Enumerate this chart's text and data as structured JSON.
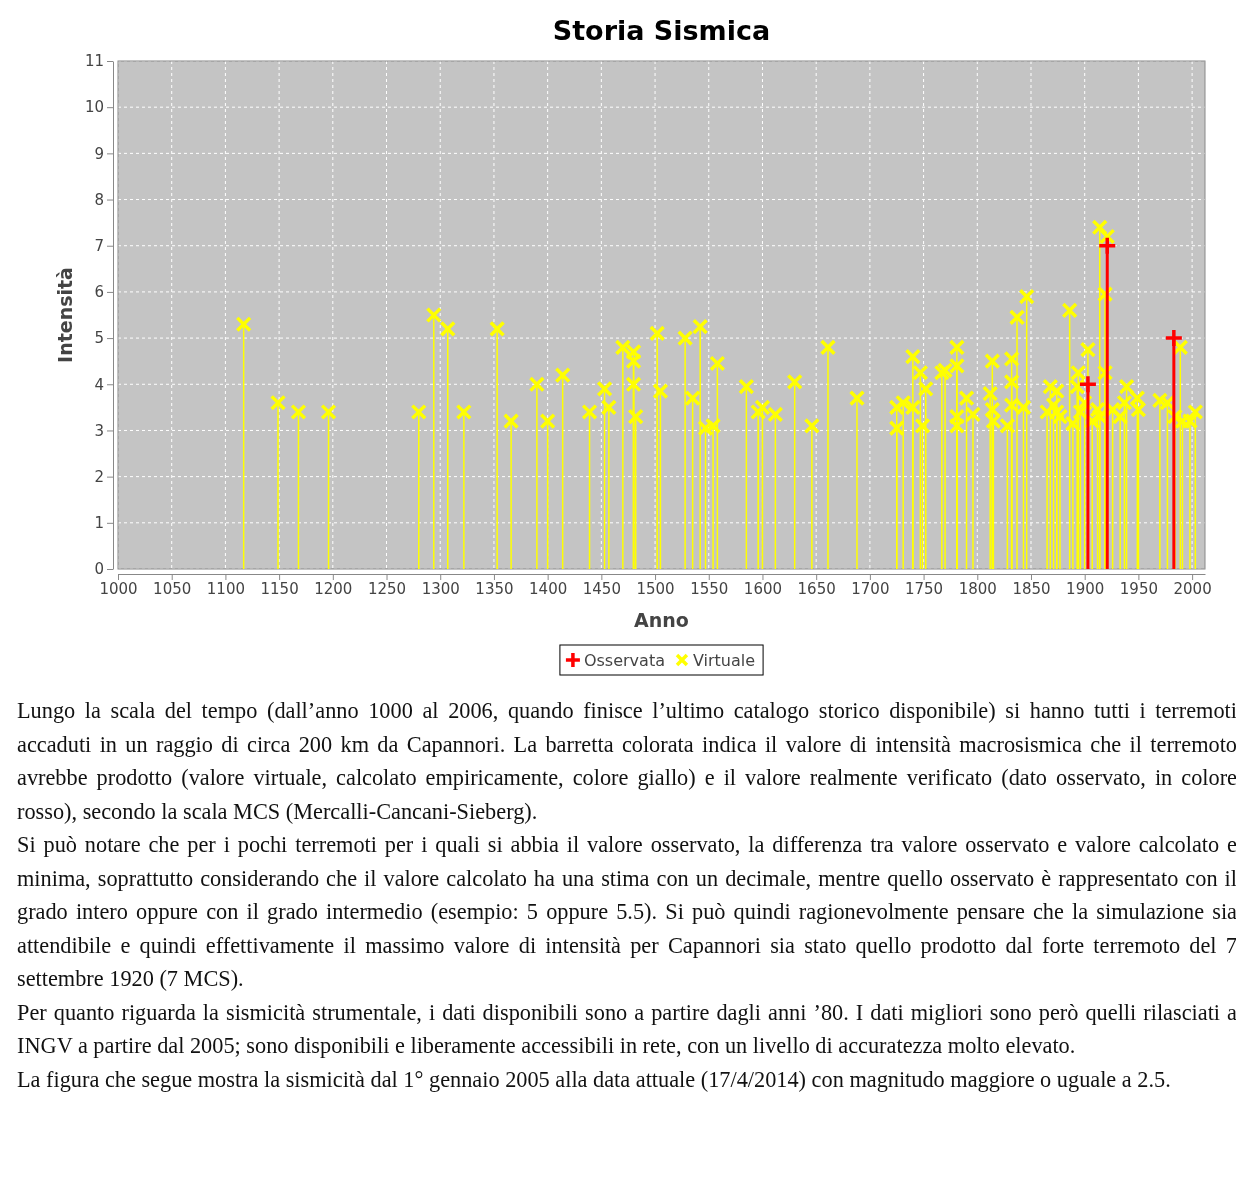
{
  "chart_data": {
    "type": "lollipop",
    "title": "Storia Sismica",
    "xlabel": "Anno",
    "ylabel": "Intensità",
    "xlim": [
      1000,
      2012
    ],
    "xticks": [
      1000,
      1050,
      1100,
      1150,
      1200,
      1250,
      1300,
      1350,
      1400,
      1450,
      1500,
      1550,
      1600,
      1650,
      1700,
      1750,
      1800,
      1850,
      1900,
      1950,
      2000
    ],
    "ylim": [
      0,
      11
    ],
    "yticks": [
      0,
      1,
      2,
      3,
      4,
      5,
      6,
      7,
      8,
      9,
      10,
      11
    ],
    "grid": true,
    "legend": "bottom",
    "marker": "cross",
    "series": [
      {
        "name": "Osservata",
        "color": "#ff0000",
        "x": [
          1903,
          1921,
          1983
        ],
        "values": [
          4.0,
          7.0,
          5.0
        ]
      },
      {
        "name": "Virtuale",
        "color": "#ffff00",
        "x": [
          1117,
          1149,
          1168,
          1196,
          1280,
          1294,
          1307,
          1322,
          1353,
          1366,
          1390,
          1400,
          1414,
          1439,
          1453,
          1457,
          1470,
          1480,
          1480,
          1480,
          1482,
          1502,
          1505,
          1528,
          1535,
          1542,
          1547,
          1554,
          1558,
          1585,
          1596,
          1600,
          1612,
          1630,
          1646,
          1661,
          1688,
          1725,
          1725,
          1731,
          1740,
          1740,
          1747,
          1749,
          1752,
          1767,
          1770,
          1781,
          1781,
          1781,
          1781,
          1790,
          1796,
          1812,
          1814,
          1814,
          1815,
          1828,
          1832,
          1832,
          1832,
          1837,
          1843,
          1846,
          1865,
          1868,
          1871,
          1874,
          1874,
          1877,
          1886,
          1889,
          1893,
          1894,
          1896,
          1900,
          1903,
          1907,
          1912,
          1914,
          1914,
          1919,
          1919,
          1921,
          1926,
          1933,
          1937,
          1939,
          1949,
          1950,
          1970,
          1977,
          1984,
          1989,
          1991,
          1998,
          2003
        ],
        "values": [
          5.3,
          3.6,
          3.4,
          3.4,
          3.4,
          5.5,
          5.2,
          3.4,
          5.2,
          3.2,
          4.0,
          3.2,
          4.2,
          3.4,
          3.9,
          3.5,
          4.8,
          4.7,
          4.5,
          4.0,
          3.3,
          5.1,
          3.85,
          5.0,
          3.7,
          5.25,
          3.05,
          3.1,
          4.45,
          3.95,
          3.4,
          3.5,
          3.35,
          4.05,
          3.1,
          4.8,
          3.7,
          3.05,
          3.5,
          3.6,
          3.5,
          4.6,
          4.25,
          3.1,
          3.9,
          4.25,
          4.3,
          4.8,
          4.4,
          3.1,
          3.3,
          3.7,
          3.35,
          3.8,
          4.5,
          3.45,
          3.2,
          3.1,
          4.55,
          4.05,
          3.55,
          5.45,
          3.5,
          5.9,
          3.4,
          3.95,
          3.55,
          3.85,
          3.4,
          3.3,
          5.6,
          3.15,
          3.95,
          4.25,
          3.4,
          3.6,
          4.75,
          3.2,
          3.45,
          7.4,
          3.3,
          5.95,
          4.25,
          7.2,
          3.45,
          3.3,
          3.6,
          3.95,
          3.7,
          3.45,
          3.65,
          3.6,
          3.3,
          4.8,
          3.2,
          3.2,
          3.4
        ]
      }
    ],
    "annotations": [
      "Lungo la scala del tempo (dall’anno 1000 al 2006, quando finisce l’ultimo catalogo storico disponibile) si hanno tutti i terremoti accaduti in un raggio di circa 200 km da Capannori. La barretta colorata indica il valore di intensità macrosismica che il terremoto avrebbe prodotto (valore virtuale, calcolato empiricamente, colore giallo) e il valore realmente verificato (dato osservato, in colore rosso), secondo la scala MCS (Mercalli-Cancani-Sieberg).",
      "Si può notare che per i pochi terremoti per i quali si abbia il valore osservato, la differenza tra valore osservato e valore calcolato e minima, soprattutto considerando che il valore calcolato ha una stima con un decimale, mentre quello osservato è rappresentato con il grado intero oppure con il grado intermedio (esempio: 5 oppure 5.5). Si può quindi ragionevolmente pensare che la simulazione sia attendibile e quindi effettivamente il massimo valore di intensità per Capannori sia stato quello prodotto dal forte terremoto del 7 settembre 1920 (7 MCS).",
      "Per quanto riguarda la sismicità strumentale, i dati disponibili sono a partire dagli anni ’80. I dati migliori sono però quelli rilasciati a INGV a partire dal 2005; sono disponibili e liberamente accessibili in rete, con un livello di accuratezza molto elevato.",
      "La figura che segue mostra la sismicità dal 1° gennaio 2005 alla data attuale (17/4/2014) con magnitudo maggiore o uguale a 2.5."
    ]
  }
}
